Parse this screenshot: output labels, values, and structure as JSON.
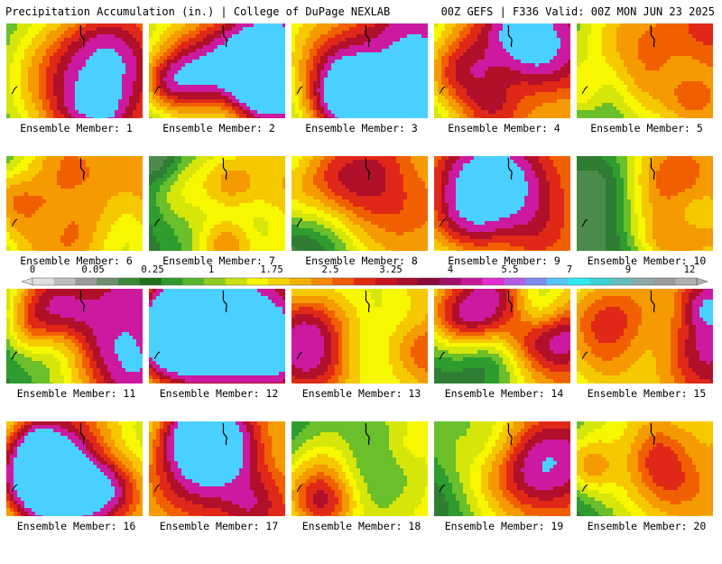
{
  "header": {
    "left_title": "Precipitation Accumulation (in.) | College of DuPage NEXLAB",
    "right_title": "00Z GEFS | F336 Valid: 00Z MON JUN 23 2025"
  },
  "colorbar": {
    "labels": [
      "0",
      "0.05",
      "0.25",
      "1",
      "1.75",
      "2.5",
      "3.25",
      "4",
      "5.5",
      "7",
      "9",
      "12"
    ],
    "colors": [
      "#e0e0e0",
      "#bcbcbc",
      "#9a9a9a",
      "#6e8e6e",
      "#3a8a3a",
      "#1f6f1f",
      "#2e9a2e",
      "#56b72a",
      "#8ccd1f",
      "#c8e10f",
      "#f6f600",
      "#f3d400",
      "#f3b000",
      "#f38a00",
      "#f05a00",
      "#e02a10",
      "#c8141e",
      "#a80f28",
      "#8a0a38",
      "#a0106a",
      "#c8189a",
      "#e22cd2",
      "#b45ce6",
      "#7a8ef0",
      "#58c3f5",
      "#2ee9f0",
      "#38d2d2",
      "#64bcbc",
      "#8ca8a8",
      "#9a9a9a",
      "#b0b0b0"
    ],
    "map_legend": {
      "c0": "#e6e6e6",
      "c1": "#b4b4b4",
      "c2": "#8c8c8c",
      "c3": "#4d8a4d",
      "c4": "#2e7d32",
      "c5": "#2e9c2e",
      "c6": "#6abf2a",
      "c7": "#d6e60a",
      "c8": "#f7f700",
      "c9": "#f5c800",
      "c10": "#f59a00",
      "c11": "#f06000",
      "c12": "#e02818",
      "c13": "#b0102a",
      "c14": "#cc1aa0",
      "c15": "#4ad0ff"
    }
  },
  "panels": [
    {
      "caption": "Ensemble Member: 1",
      "seed": 11
    },
    {
      "caption": "Ensemble Member: 2",
      "seed": 23
    },
    {
      "caption": "Ensemble Member: 3",
      "seed": 37
    },
    {
      "caption": "Ensemble Member: 4",
      "seed": 41
    },
    {
      "caption": "Ensemble Member: 5",
      "seed": 53
    },
    {
      "caption": "Ensemble Member: 6",
      "seed": 67
    },
    {
      "caption": "Ensemble Member: 7",
      "seed": 71
    },
    {
      "caption": "Ensemble Member: 8",
      "seed": 83
    },
    {
      "caption": "Ensemble Member: 9",
      "seed": 97
    },
    {
      "caption": "Ensemble Member: 10",
      "seed": 101
    },
    {
      "caption": "Ensemble Member: 11",
      "seed": 113
    },
    {
      "caption": "Ensemble Member: 12",
      "seed": 127
    },
    {
      "caption": "Ensemble Member: 13",
      "seed": 131
    },
    {
      "caption": "Ensemble Member: 14",
      "seed": 149
    },
    {
      "caption": "Ensemble Member: 15",
      "seed": 151
    },
    {
      "caption": "Ensemble Member: 16",
      "seed": 163
    },
    {
      "caption": "Ensemble Member: 17",
      "seed": 173
    },
    {
      "caption": "Ensemble Member: 18",
      "seed": 181
    },
    {
      "caption": "Ensemble Member: 19",
      "seed": 191
    },
    {
      "caption": "Ensemble Member: 20",
      "seed": 197
    }
  ]
}
